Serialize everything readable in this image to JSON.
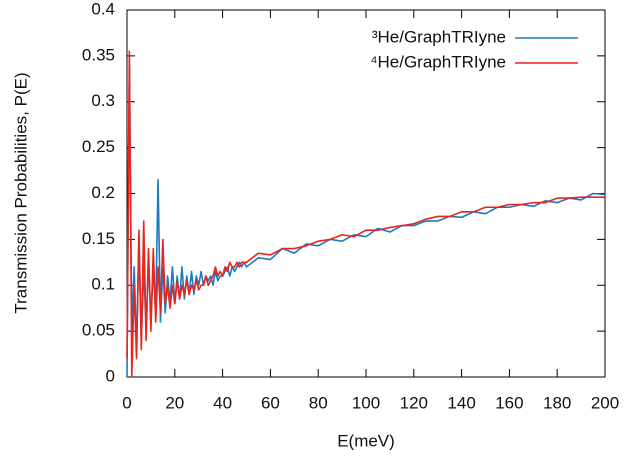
{
  "chart_data": {
    "type": "line",
    "xlabel": "E(meV)",
    "ylabel": "Transmission Probabilities, P(E)",
    "x": [
      0,
      1,
      2,
      3,
      4,
      5,
      6,
      7,
      8,
      9,
      10,
      11,
      12,
      13,
      14,
      15,
      16,
      17,
      18,
      19,
      20,
      21,
      22,
      23,
      24,
      25,
      26,
      27,
      28,
      29,
      30,
      31,
      32,
      33,
      34,
      35,
      36,
      37,
      38,
      39,
      40,
      41,
      42,
      43,
      44,
      45,
      46,
      47,
      48,
      49,
      50,
      55,
      60,
      65,
      70,
      75,
      80,
      85,
      90,
      95,
      100,
      105,
      110,
      115,
      120,
      125,
      130,
      135,
      140,
      145,
      150,
      155,
      160,
      165,
      170,
      175,
      180,
      185,
      190,
      195,
      200
    ],
    "series": [
      {
        "name": "³He/GraphTRIyne",
        "color": "#1b7bbd",
        "values": [
          0.0,
          0.34,
          0.05,
          0.12,
          0.03,
          0.15,
          0.04,
          0.12,
          0.05,
          0.13,
          0.06,
          0.12,
          0.07,
          0.215,
          0.06,
          0.12,
          0.07,
          0.11,
          0.08,
          0.12,
          0.08,
          0.11,
          0.085,
          0.12,
          0.085,
          0.11,
          0.09,
          0.115,
          0.09,
          0.11,
          0.1,
          0.115,
          0.1,
          0.11,
          0.105,
          0.11,
          0.1,
          0.115,
          0.105,
          0.11,
          0.11,
          0.115,
          0.12,
          0.11,
          0.12,
          0.115,
          0.12,
          0.125,
          0.12,
          0.125,
          0.12,
          0.13,
          0.128,
          0.14,
          0.135,
          0.145,
          0.143,
          0.15,
          0.148,
          0.155,
          0.153,
          0.162,
          0.158,
          0.165,
          0.165,
          0.17,
          0.17,
          0.175,
          0.174,
          0.18,
          0.178,
          0.185,
          0.185,
          0.188,
          0.186,
          0.192,
          0.19,
          0.195,
          0.193,
          0.2,
          0.199
        ]
      },
      {
        "name": "⁴He/GraphTRIyne",
        "color": "#e8251f",
        "values": [
          0.02,
          0.355,
          0.0,
          0.1,
          0.02,
          0.16,
          0.03,
          0.17,
          0.04,
          0.14,
          0.05,
          0.14,
          0.06,
          0.12,
          0.07,
          0.15,
          0.08,
          0.1,
          0.075,
          0.1,
          0.08,
          0.105,
          0.085,
          0.1,
          0.09,
          0.105,
          0.09,
          0.1,
          0.095,
          0.105,
          0.095,
          0.1,
          0.1,
          0.11,
          0.1,
          0.105,
          0.11,
          0.12,
          0.11,
          0.115,
          0.11,
          0.12,
          0.115,
          0.125,
          0.12,
          0.12,
          0.125,
          0.12,
          0.125,
          0.125,
          0.125,
          0.135,
          0.133,
          0.14,
          0.14,
          0.143,
          0.148,
          0.15,
          0.155,
          0.153,
          0.16,
          0.16,
          0.163,
          0.165,
          0.167,
          0.172,
          0.175,
          0.175,
          0.18,
          0.18,
          0.185,
          0.185,
          0.188,
          0.188,
          0.19,
          0.19,
          0.195,
          0.195,
          0.196,
          0.196,
          0.196
        ]
      }
    ],
    "xlim": [
      0,
      200
    ],
    "xticks": [
      0,
      20,
      40,
      60,
      80,
      100,
      120,
      140,
      160,
      180,
      200
    ],
    "ylim": [
      0,
      0.4
    ],
    "yticks": [
      0,
      0.05,
      0.1,
      0.15,
      0.2,
      0.25,
      0.3,
      0.35,
      0.4
    ],
    "legend": "top-right",
    "grid": false
  }
}
